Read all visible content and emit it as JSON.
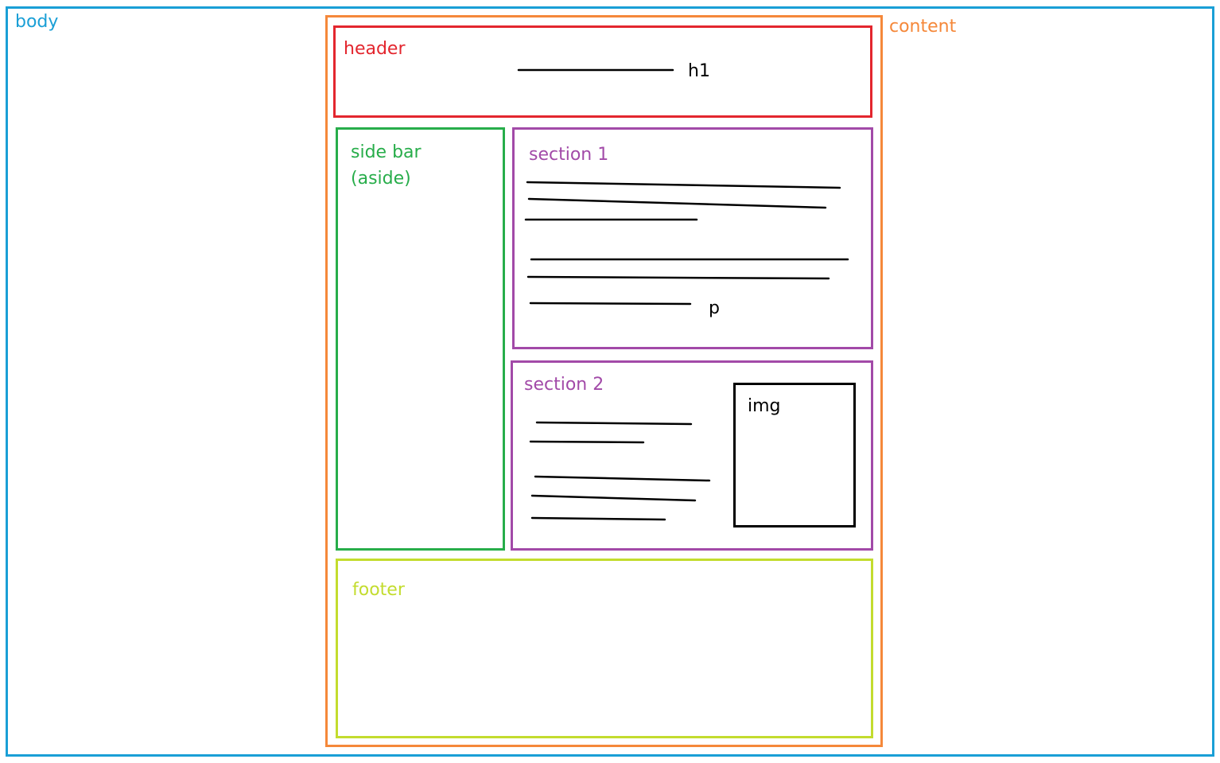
{
  "colors": {
    "body": "#1a9fd6",
    "content": "#f5883a",
    "header": "#e3262e",
    "sidebar": "#27ad4a",
    "section": "#a24aa8",
    "footer": "#c3dc2e",
    "ink": "#000000"
  },
  "labels": {
    "body": "body",
    "content": "content",
    "header": "header",
    "h1": "h1",
    "sidebar_line1": "side bar",
    "sidebar_line2": "(aside)",
    "section1": "section 1",
    "p": "p",
    "section2": "section 2",
    "img": "img",
    "footer": "footer"
  },
  "placeholder_lines": {
    "h1": 1,
    "section1_paragraph1": 3,
    "section1_paragraph2": 3,
    "section2_paragraph1": 2,
    "section2_paragraph2": 3
  }
}
